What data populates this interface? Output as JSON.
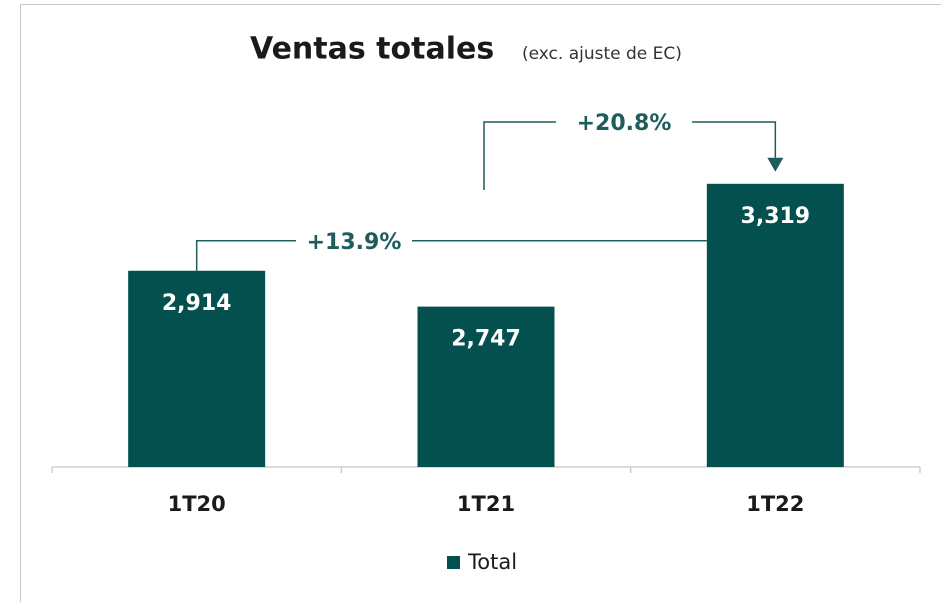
{
  "chart_data": {
    "type": "bar",
    "title": "Ventas totales",
    "subtitle": "(exc. ajuste de EC)",
    "categories": [
      "1T20",
      "1T21",
      "1T22"
    ],
    "series": [
      {
        "name": "Total",
        "color": "#03504f",
        "values": [
          2914,
          2747,
          3319
        ],
        "value_labels": [
          "2,914",
          "2,747",
          "3,319"
        ]
      }
    ],
    "annotations": [
      "+13.9%",
      "+20.8%"
    ],
    "ylim": [
      2000,
      3700
    ],
    "legend": "bottom"
  }
}
